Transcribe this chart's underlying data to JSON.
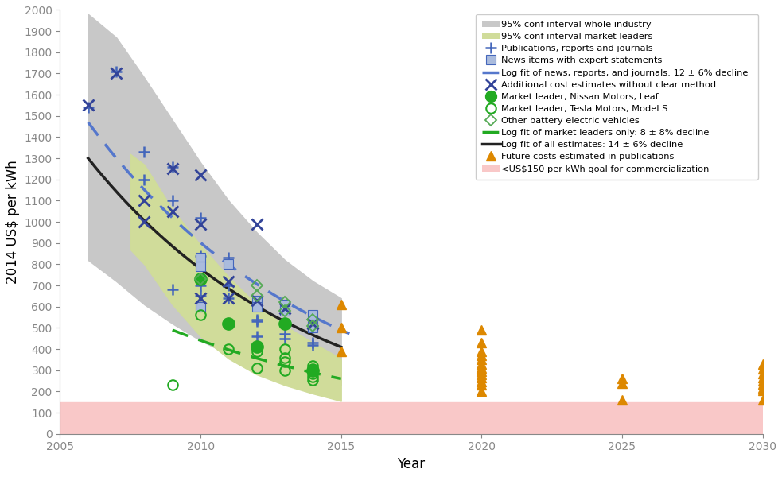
{
  "xlim": [
    2005,
    2030
  ],
  "ylim": [
    0,
    2000
  ],
  "yticks": [
    0,
    100,
    200,
    300,
    400,
    500,
    600,
    700,
    800,
    900,
    1000,
    1100,
    1200,
    1300,
    1400,
    1500,
    1600,
    1700,
    1800,
    1900,
    2000
  ],
  "xticks": [
    2005,
    2010,
    2015,
    2020,
    2025,
    2030
  ],
  "xlabel": "Year",
  "ylabel": "2014 US$ per kWh",
  "grey_band": {
    "x": [
      2006,
      2007,
      2008,
      2009,
      2010,
      2011,
      2012,
      2013,
      2014,
      2015
    ],
    "upper": [
      1980,
      1870,
      1680,
      1480,
      1280,
      1100,
      950,
      820,
      720,
      640
    ],
    "lower": [
      820,
      720,
      610,
      520,
      440,
      375,
      320,
      280,
      250,
      230
    ]
  },
  "green_band": {
    "x": [
      2007.5,
      2008,
      2009,
      2010,
      2011,
      2012,
      2013,
      2014,
      2015
    ],
    "upper": [
      1320,
      1270,
      1060,
      890,
      740,
      610,
      510,
      430,
      355
    ],
    "lower": [
      870,
      800,
      610,
      460,
      355,
      280,
      230,
      190,
      155
    ]
  },
  "publications_plus": [
    [
      2006,
      1540
    ],
    [
      2007,
      1710
    ],
    [
      2008,
      1330
    ],
    [
      2008,
      1200
    ],
    [
      2009,
      1260
    ],
    [
      2009,
      1100
    ],
    [
      2009,
      680
    ],
    [
      2010,
      1020
    ],
    [
      2010,
      840
    ],
    [
      2010,
      700
    ],
    [
      2010,
      650
    ],
    [
      2011,
      830
    ],
    [
      2011,
      700
    ],
    [
      2011,
      640
    ],
    [
      2012,
      540
    ],
    [
      2012,
      530
    ],
    [
      2012,
      460
    ],
    [
      2013,
      520
    ],
    [
      2013,
      470
    ],
    [
      2013,
      450
    ],
    [
      2014,
      510
    ],
    [
      2014,
      500
    ],
    [
      2014,
      430
    ],
    [
      2014,
      420
    ]
  ],
  "news_squares": [
    [
      2010,
      830
    ],
    [
      2010,
      790
    ],
    [
      2010,
      600
    ],
    [
      2011,
      800
    ],
    [
      2012,
      630
    ],
    [
      2012,
      600
    ],
    [
      2013,
      610
    ],
    [
      2013,
      580
    ],
    [
      2014,
      560
    ],
    [
      2014,
      510
    ],
    [
      2014,
      500
    ]
  ],
  "blue_fit_segments": [
    [
      [
        2006.3,
        2007.2
      ],
      [
        1470,
        1390
      ]
    ],
    [
      [
        2007.5,
        2008.5
      ],
      [
        1310,
        1220
      ]
    ],
    [
      [
        2009.0,
        2010.0
      ],
      [
        1110,
        1020
      ]
    ],
    [
      [
        2010.5,
        2011.5
      ],
      [
        960,
        880
      ]
    ],
    [
      [
        2012.0,
        2013.0
      ],
      [
        790,
        720
      ]
    ],
    [
      [
        2013.5,
        2014.5
      ],
      [
        680,
        610
      ]
    ],
    [
      [
        2014.8,
        2015.3
      ],
      [
        580,
        545
      ]
    ]
  ],
  "additional_x": [
    [
      2006,
      1550
    ],
    [
      2007,
      1700
    ],
    [
      2008,
      1100
    ],
    [
      2008,
      1000
    ],
    [
      2009,
      1250
    ],
    [
      2009,
      1050
    ],
    [
      2010,
      1220
    ],
    [
      2010,
      990
    ],
    [
      2010,
      640
    ],
    [
      2011,
      640
    ],
    [
      2011,
      720
    ],
    [
      2012,
      990
    ],
    [
      2012,
      630
    ],
    [
      2013,
      590
    ],
    [
      2014,
      520
    ]
  ],
  "nissan_leaf": [
    [
      2010,
      730
    ],
    [
      2011,
      520
    ],
    [
      2012,
      410
    ],
    [
      2013,
      520
    ],
    [
      2014,
      300
    ]
  ],
  "tesla_model_s": [
    [
      2010,
      560
    ],
    [
      2011,
      400
    ],
    [
      2012,
      390
    ],
    [
      2012,
      310
    ],
    [
      2013,
      400
    ],
    [
      2013,
      360
    ],
    [
      2013,
      340
    ],
    [
      2013,
      300
    ],
    [
      2014,
      320
    ],
    [
      2014,
      305
    ],
    [
      2014,
      285
    ],
    [
      2014,
      270
    ],
    [
      2014,
      255
    ],
    [
      2009,
      230
    ]
  ],
  "other_bev": [
    [
      2010,
      730
    ],
    [
      2012,
      700
    ],
    [
      2012,
      650
    ],
    [
      2013,
      620
    ],
    [
      2013,
      580
    ],
    [
      2014,
      540
    ],
    [
      2014,
      510
    ]
  ],
  "black_fit": {
    "log_a": 3.9657,
    "log_b": -0.0611,
    "x_start": 2006,
    "x_end": 2015
  },
  "green_fit": {
    "log_a": 3.5,
    "log_b": -0.038,
    "x_start": 2009,
    "x_end": 2015
  },
  "future_costs": [
    [
      2015,
      610
    ],
    [
      2015,
      500
    ],
    [
      2015,
      390
    ],
    [
      2020,
      490
    ],
    [
      2020,
      430
    ],
    [
      2020,
      390
    ],
    [
      2020,
      370
    ],
    [
      2020,
      350
    ],
    [
      2020,
      330
    ],
    [
      2020,
      310
    ],
    [
      2020,
      295
    ],
    [
      2020,
      280
    ],
    [
      2020,
      265
    ],
    [
      2020,
      245
    ],
    [
      2020,
      230
    ],
    [
      2020,
      200
    ],
    [
      2025,
      260
    ],
    [
      2025,
      240
    ],
    [
      2025,
      160
    ],
    [
      2030,
      330
    ],
    [
      2030,
      305
    ],
    [
      2030,
      285
    ],
    [
      2030,
      265
    ],
    [
      2030,
      250
    ],
    [
      2030,
      235
    ],
    [
      2030,
      215
    ],
    [
      2030,
      205
    ],
    [
      2030,
      160
    ]
  ],
  "commercialization_band": {
    "y_lower": 0,
    "y_upper": 150
  },
  "colors": {
    "grey_band": "#c8c8c8",
    "green_band": "#d0dc9a",
    "blue_fit": "#5577cc",
    "black_fit": "#222222",
    "green_fit": "#22aa22",
    "publications_plus": "#4466bb",
    "news_squares_face": "#aabbdd",
    "news_squares_edge": "#4466bb",
    "additional_x": "#334499",
    "nissan_leaf": "#22aa22",
    "tesla_model_s": "#22aa22",
    "other_bev": "#55aa55",
    "future_costs": "#dd8800",
    "commercialization": "#f9c8c8"
  },
  "legend_labels": [
    "95% conf interval whole industry",
    "95% conf interval market leaders",
    "Publications, reports and journals",
    "News items with expert statements",
    "Log fit of news, reports, and journals: 12 ± 6% decline",
    "Additional cost estimates without clear method",
    "Market leader, Nissan Motors, Leaf",
    "Market leader, Tesla Motors, Model S",
    "Other battery electric vehicles",
    "Log fit of market leaders only: 8 ± 8% decline",
    "Log fit of all estimates: 14 ± 6% decline",
    "Future costs estimated in publications",
    "<US$150 per kWh goal for commercialization"
  ]
}
